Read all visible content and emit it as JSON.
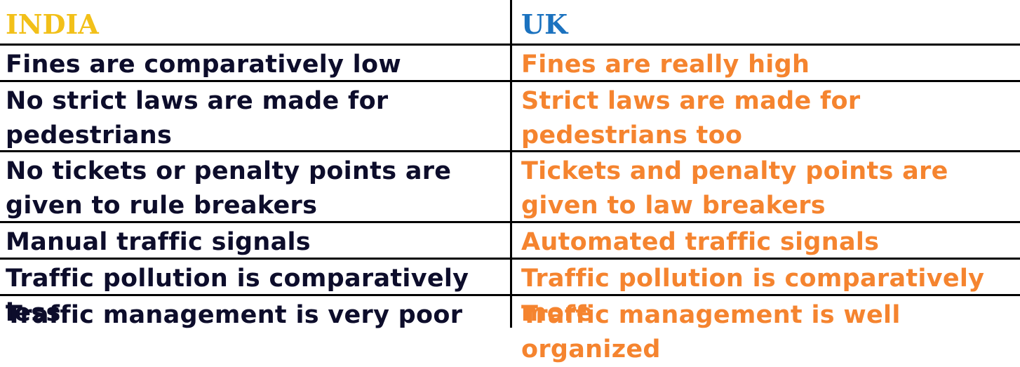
{
  "header": {
    "left": "INDIA",
    "right": "UK"
  },
  "rows": [
    {
      "india": "Fines are comparatively low",
      "uk": "Fines are really high"
    },
    {
      "india": "No strict laws are made for pedestrians",
      "uk": "Strict laws are made for pedestrians too"
    },
    {
      "india": "No tickets or penalty points are given to rule breakers",
      "uk": "Tickets and penalty points are given to law breakers"
    },
    {
      "india": "Manual traffic signals",
      "uk": "Automated traffic signals"
    },
    {
      "india": "Traffic pollution is comparatively less",
      "uk": "Traffic pollution is comparatively more"
    },
    {
      "india": "Traffic management is very poor",
      "uk": "Traffic management is well organized"
    }
  ],
  "colors": {
    "india_header": "#f2c019",
    "uk_header": "#1b72bf",
    "india_text": "#0d0d2b",
    "uk_text": "#f5842f",
    "rules": "#000000"
  }
}
